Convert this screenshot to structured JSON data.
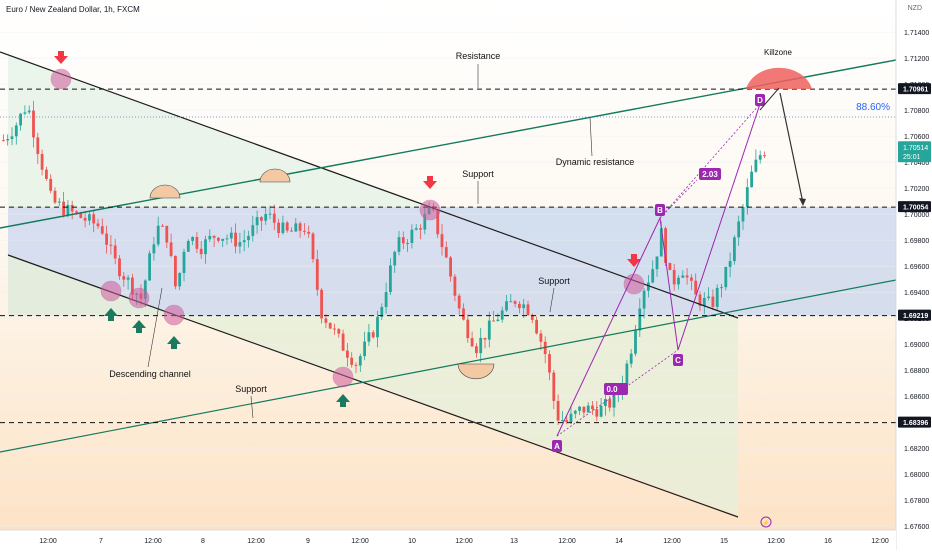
{
  "header": {
    "symbol_title": "Euro / New Zealand Dollar, 1h, FXCM",
    "currency": "NZD"
  },
  "colors": {
    "bull": "#26a69a",
    "bear": "#ef5350",
    "channel_line": "#1e1e1e",
    "trendline": "#137a5c",
    "pattern": "#9c27b0",
    "marker_down": "#f23645",
    "marker_up": "#1b7a5d",
    "circle": "#d05a9a",
    "killzone": "#f0605d"
  },
  "chart_data": {
    "type": "candlestick",
    "instrument": "EURNZD",
    "timeframe": "1h",
    "ylim": [
      1.675,
      1.716
    ],
    "price_ticks": [
      "1.71400",
      "1.71200",
      "1.71000",
      "1.70800",
      "1.70600",
      "1.70400",
      "1.70200",
      "1.70000",
      "1.69800",
      "1.69600",
      "1.69400",
      "1.69200",
      "1.69000",
      "1.68800",
      "1.68600",
      "1.68400",
      "1.68200",
      "1.68000",
      "1.67800",
      "1.67600"
    ],
    "time_labels": [
      "12:00",
      "7",
      "12:00",
      "8",
      "12:00",
      "9",
      "12:00",
      "10",
      "12:00",
      "13",
      "12:00",
      "14",
      "12:00",
      "15",
      "12:00",
      "16",
      "12:00"
    ],
    "highlighted_prices": [
      "1.70961",
      "1.70054",
      "1.69219",
      "1.68396"
    ],
    "current_price": {
      "value": "1.70514",
      "countdown": "25:01"
    },
    "fib_level": "88.60%",
    "pattern_labels": [
      "A",
      "B",
      "C",
      "D"
    ],
    "pattern_ratio": "2.03",
    "pattern_pending_ratio": "0.0",
    "annotations": {
      "resistance": "Resistance",
      "killzone": "Killzone",
      "dynamic_resistance": "Dynamic resistance",
      "support_top": "Support",
      "support_mid": "Support",
      "support_low": "Support",
      "descending_channel": "Descending channel"
    }
  }
}
